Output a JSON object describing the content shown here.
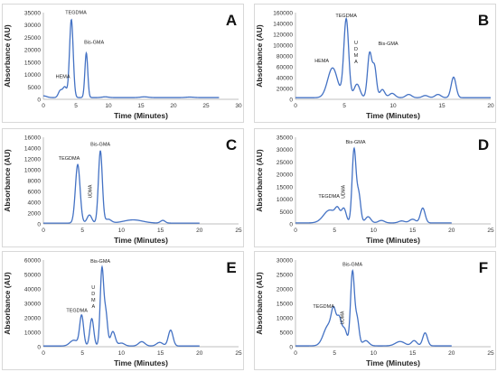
{
  "figure": {
    "panels": [
      "A",
      "B",
      "C",
      "D",
      "E",
      "F"
    ]
  },
  "chart_data": [
    {
      "panel_label": "A",
      "type": "line",
      "xlabel": "Time (Minutes)",
      "ylabel": "Absorbance (AU)",
      "xlim": [
        0,
        30
      ],
      "ylim": [
        0,
        35000
      ],
      "xticks": [
        0,
        5,
        10,
        15,
        20,
        25,
        30
      ],
      "yticks": [
        0,
        5000,
        10000,
        15000,
        20000,
        25000,
        30000,
        35000
      ],
      "color": "#4472c4",
      "peaks": [
        {
          "x": 0.0,
          "y": 700,
          "w": 0.5
        },
        {
          "x": 2.6,
          "y": 2800,
          "w": 0.3
        },
        {
          "x": 3.3,
          "y": 4200,
          "w": 0.3
        },
        {
          "x": 4.3,
          "y": 31500,
          "w": 0.28
        },
        {
          "x": 6.6,
          "y": 18000,
          "w": 0.22
        },
        {
          "x": 9.5,
          "y": 300,
          "w": 0.5
        },
        {
          "x": 15.5,
          "y": 300,
          "w": 0.6
        },
        {
          "x": 22.5,
          "y": 200,
          "w": 0.6
        }
      ],
      "baseline": 700,
      "annotations": [
        {
          "text": "HEMA",
          "x": 3.0,
          "y": 8500
        },
        {
          "text": "TEGDMA",
          "x": 5.0,
          "y": 34500
        },
        {
          "text": "Bis-GMA",
          "x": 7.8,
          "y": 22500
        }
      ]
    },
    {
      "panel_label": "B",
      "type": "line",
      "xlabel": "Time (Minutes)",
      "ylabel": "Absorbance (AU)",
      "xlim": [
        0,
        20
      ],
      "ylim": [
        0,
        160000
      ],
      "xticks": [
        0,
        5,
        10,
        15,
        20
      ],
      "yticks": [
        0,
        20000,
        40000,
        60000,
        80000,
        100000,
        120000,
        140000,
        160000
      ],
      "color": "#4472c4",
      "peaks": [
        {
          "x": 3.8,
          "y": 55000,
          "w": 0.5
        },
        {
          "x": 5.2,
          "y": 145000,
          "w": 0.25
        },
        {
          "x": 6.3,
          "y": 25000,
          "w": 0.3
        },
        {
          "x": 7.6,
          "y": 82000,
          "w": 0.22
        },
        {
          "x": 8.1,
          "y": 55000,
          "w": 0.2
        },
        {
          "x": 8.9,
          "y": 15000,
          "w": 0.25
        },
        {
          "x": 9.9,
          "y": 8000,
          "w": 0.3
        },
        {
          "x": 11.6,
          "y": 6000,
          "w": 0.3
        },
        {
          "x": 13.3,
          "y": 4000,
          "w": 0.3
        },
        {
          "x": 14.6,
          "y": 6000,
          "w": 0.3
        },
        {
          "x": 16.2,
          "y": 38000,
          "w": 0.25
        }
      ],
      "baseline": 3000,
      "annotations": [
        {
          "text": "HEMA",
          "x": 2.7,
          "y": 68000
        },
        {
          "text": "TEGDMA",
          "x": 5.2,
          "y": 152000
        },
        {
          "text": "Bis-GMA",
          "x": 9.5,
          "y": 100000
        }
      ],
      "vertical_annotations": [
        {
          "text": "UDMA",
          "x": 6.2,
          "y": 102000
        }
      ]
    },
    {
      "panel_label": "C",
      "type": "line",
      "xlabel": "Time (Minutes)",
      "ylabel": "Absorbance (AU)",
      "xlim": [
        0,
        25
      ],
      "ylim": [
        0,
        16000
      ],
      "xticks": [
        0,
        5,
        10,
        15,
        20,
        25
      ],
      "yticks": [
        0,
        2000,
        4000,
        6000,
        8000,
        10000,
        12000,
        14000,
        16000
      ],
      "color": "#4472c4",
      "peaks": [
        {
          "x": 4.4,
          "y": 10800,
          "w": 0.3
        },
        {
          "x": 5.9,
          "y": 1500,
          "w": 0.3
        },
        {
          "x": 7.3,
          "y": 13300,
          "w": 0.25
        },
        {
          "x": 8.3,
          "y": 700,
          "w": 0.4
        },
        {
          "x": 11.5,
          "y": 600,
          "w": 1.2
        },
        {
          "x": 15.3,
          "y": 500,
          "w": 0.3
        }
      ],
      "baseline": 150,
      "annotations": [
        {
          "text": "TEGDMA",
          "x": 3.3,
          "y": 11800
        },
        {
          "text": "Bis-GMA",
          "x": 7.3,
          "y": 14400
        }
      ],
      "vertical_annotations": [
        {
          "text": "UDMA",
          "x": 6.2,
          "y": 6000
        }
      ]
    },
    {
      "panel_label": "D",
      "type": "line",
      "xlabel": "Time (Minutes)",
      "ylabel": "Absorbance (AU)",
      "xlim": [
        0,
        25
      ],
      "ylim": [
        0,
        35000
      ],
      "xticks": [
        0,
        5,
        10,
        15,
        20,
        25
      ],
      "yticks": [
        0,
        5000,
        10000,
        15000,
        20000,
        25000,
        30000,
        35000
      ],
      "color": "#4472c4",
      "peaks": [
        {
          "x": 4.4,
          "y": 5200,
          "w": 0.8
        },
        {
          "x": 5.4,
          "y": 4000,
          "w": 0.3
        },
        {
          "x": 6.2,
          "y": 5500,
          "w": 0.3
        },
        {
          "x": 7.5,
          "y": 29500,
          "w": 0.25
        },
        {
          "x": 8.1,
          "y": 11500,
          "w": 0.25
        },
        {
          "x": 9.3,
          "y": 2500,
          "w": 0.35
        },
        {
          "x": 11.0,
          "y": 1000,
          "w": 0.4
        },
        {
          "x": 13.6,
          "y": 800,
          "w": 0.4
        },
        {
          "x": 15.0,
          "y": 1500,
          "w": 0.4
        },
        {
          "x": 16.3,
          "y": 6000,
          "w": 0.3
        }
      ],
      "baseline": 400,
      "annotations": [
        {
          "text": "TEGDMA",
          "x": 4.3,
          "y": 10500
        },
        {
          "text": "Bis-GMA",
          "x": 7.7,
          "y": 32500
        }
      ],
      "vertical_annotations": [
        {
          "text": "UDMA",
          "x": 6.3,
          "y": 13000
        }
      ]
    },
    {
      "panel_label": "E",
      "type": "line",
      "xlabel": "Time (Minutes)",
      "ylabel": "Absorbance (AU)",
      "xlim": [
        0,
        25
      ],
      "ylim": [
        0,
        60000
      ],
      "xticks": [
        0,
        5,
        10,
        15,
        20,
        25
      ],
      "yticks": [
        0,
        10000,
        20000,
        30000,
        40000,
        50000,
        60000
      ],
      "color": "#4472c4",
      "peaks": [
        {
          "x": 3.9,
          "y": 4000,
          "w": 0.5
        },
        {
          "x": 4.9,
          "y": 21000,
          "w": 0.25
        },
        {
          "x": 6.2,
          "y": 19000,
          "w": 0.25
        },
        {
          "x": 7.5,
          "y": 53000,
          "w": 0.22
        },
        {
          "x": 8.0,
          "y": 22000,
          "w": 0.22
        },
        {
          "x": 8.9,
          "y": 10000,
          "w": 0.3
        },
        {
          "x": 10.0,
          "y": 2000,
          "w": 0.4
        },
        {
          "x": 12.6,
          "y": 3000,
          "w": 0.4
        },
        {
          "x": 14.9,
          "y": 2500,
          "w": 0.4
        },
        {
          "x": 16.3,
          "y": 11000,
          "w": 0.3
        }
      ],
      "baseline": 500,
      "annotations": [
        {
          "text": "TEGDMA",
          "x": 4.3,
          "y": 24000
        },
        {
          "text": "Bis-GMA",
          "x": 7.3,
          "y": 58000
        }
      ],
      "vertical_annotations": [
        {
          "text": "UDMA",
          "x": 6.4,
          "y": 40000
        }
      ]
    },
    {
      "panel_label": "F",
      "type": "line",
      "xlabel": "Time (Minutes)",
      "ylabel": "Absorbance (AU)",
      "xlim": [
        0,
        25
      ],
      "ylim": [
        0,
        30000
      ],
      "xticks": [
        0,
        5,
        10,
        15,
        20,
        25
      ],
      "yticks": [
        0,
        5000,
        10000,
        15000,
        20000,
        25000,
        30000
      ],
      "color": "#4472c4",
      "peaks": [
        {
          "x": 4.2,
          "y": 7000,
          "w": 0.6
        },
        {
          "x": 4.9,
          "y": 9500,
          "w": 0.3
        },
        {
          "x": 5.6,
          "y": 9000,
          "w": 0.3
        },
        {
          "x": 6.3,
          "y": 5500,
          "w": 0.3
        },
        {
          "x": 7.3,
          "y": 25500,
          "w": 0.25
        },
        {
          "x": 7.9,
          "y": 9000,
          "w": 0.25
        },
        {
          "x": 9.0,
          "y": 1800,
          "w": 0.4
        },
        {
          "x": 13.4,
          "y": 1500,
          "w": 0.6
        },
        {
          "x": 15.2,
          "y": 1800,
          "w": 0.35
        },
        {
          "x": 16.6,
          "y": 4500,
          "w": 0.3
        }
      ],
      "baseline": 300,
      "annotations": [
        {
          "text": "TEGDMA",
          "x": 3.6,
          "y": 13500
        },
        {
          "text": "Bis-GMA",
          "x": 7.3,
          "y": 28000
        }
      ],
      "vertical_annotations": [
        {
          "text": "UDMA",
          "x": 6.2,
          "y": 10000
        }
      ]
    }
  ]
}
